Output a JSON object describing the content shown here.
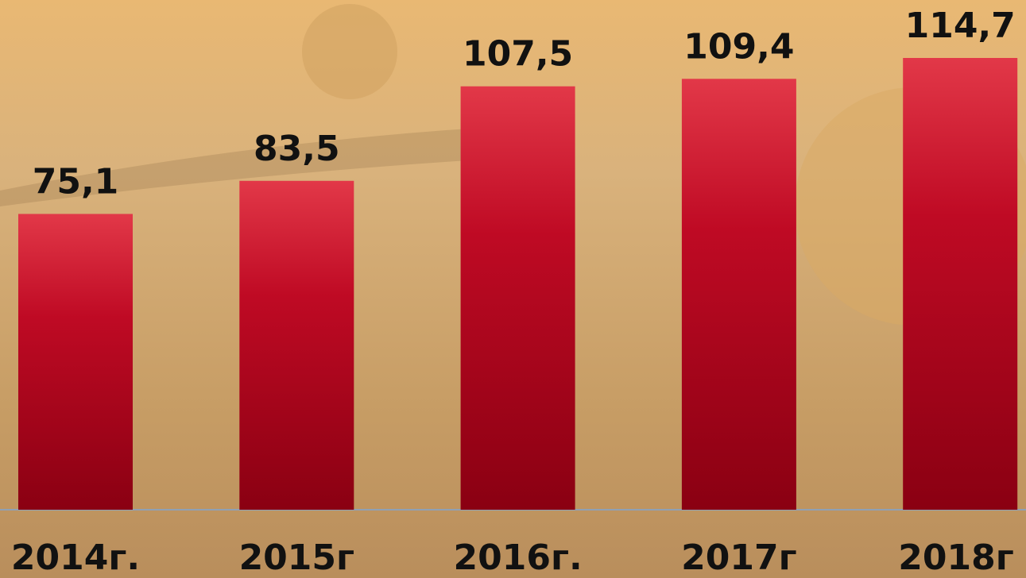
{
  "chart_data": {
    "type": "bar",
    "categories": [
      "2014г.",
      "2015г",
      "2016г.",
      "2017г",
      "2018г"
    ],
    "values": [
      75.1,
      83.5,
      107.5,
      109.4,
      114.7
    ],
    "value_labels": [
      "75,1",
      "83,5",
      "107,5",
      "109,4",
      "114,7"
    ],
    "color": "#c8102e"
  }
}
